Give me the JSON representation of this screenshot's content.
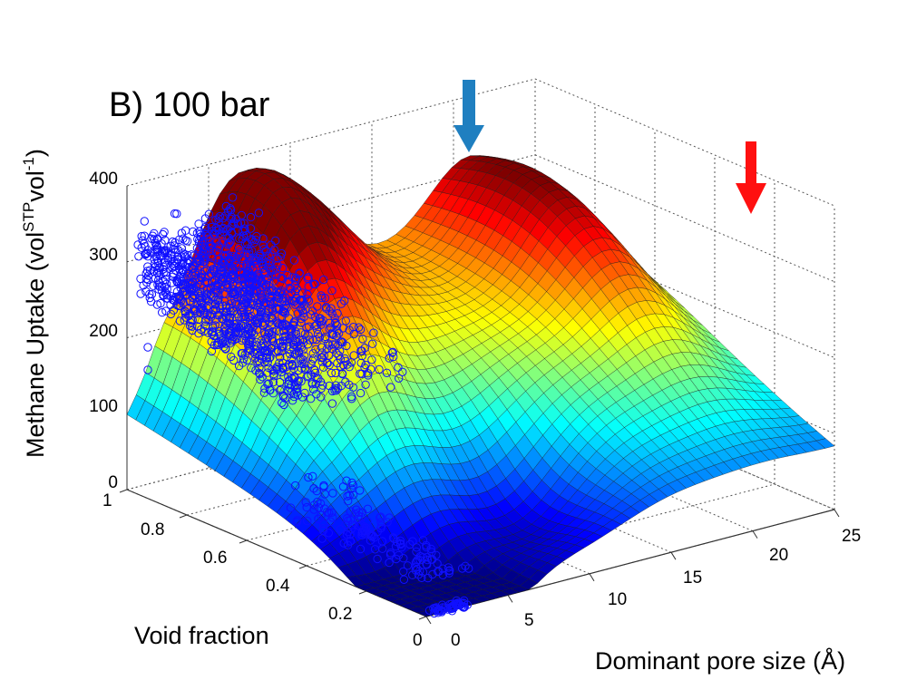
{
  "chart_data": {
    "type": "surface3d",
    "panel_label": "B)  100 bar",
    "zlabel_main": "Methane Uptake (vol",
    "zlabel_sup1": "STP",
    "zlabel_mid": "vol",
    "zlabel_sup2": "-1",
    "zlabel_end": ")",
    "xlabel": "Void fraction",
    "ylabel": "Dominant pore size (Å)",
    "x_ticks": [
      "0",
      "0.2",
      "0.4",
      "0.6",
      "0.8",
      "1"
    ],
    "y_ticks": [
      "0",
      "5",
      "10",
      "15",
      "20",
      "25"
    ],
    "z_ticks": [
      "0",
      "100",
      "200",
      "300",
      "400"
    ],
    "xlim": [
      0,
      1
    ],
    "ylim": [
      0,
      25
    ],
    "zlim": [
      0,
      400
    ],
    "grid": true,
    "colormap": "jet",
    "scatter_color": "#1010ff",
    "arrows": [
      {
        "pore_size": 8,
        "color": "#1f7fc0"
      },
      {
        "pore_size": 20,
        "color": "#ff1010"
      }
    ],
    "surface_peaks": [
      {
        "void_fraction": 0.85,
        "pore_size": 6,
        "uptake": 335
      },
      {
        "void_fraction": 0.9,
        "pore_size": 10,
        "uptake": 300
      },
      {
        "void_fraction": 0.8,
        "pore_size": 21,
        "uptake": 260
      }
    ],
    "surface_min": {
      "void_fraction": 0.05,
      "pore_size": 2,
      "uptake": 0
    },
    "surface_edge_low_pore": {
      "void_fraction": 1,
      "pore_size": 0,
      "uptake": 155
    }
  }
}
